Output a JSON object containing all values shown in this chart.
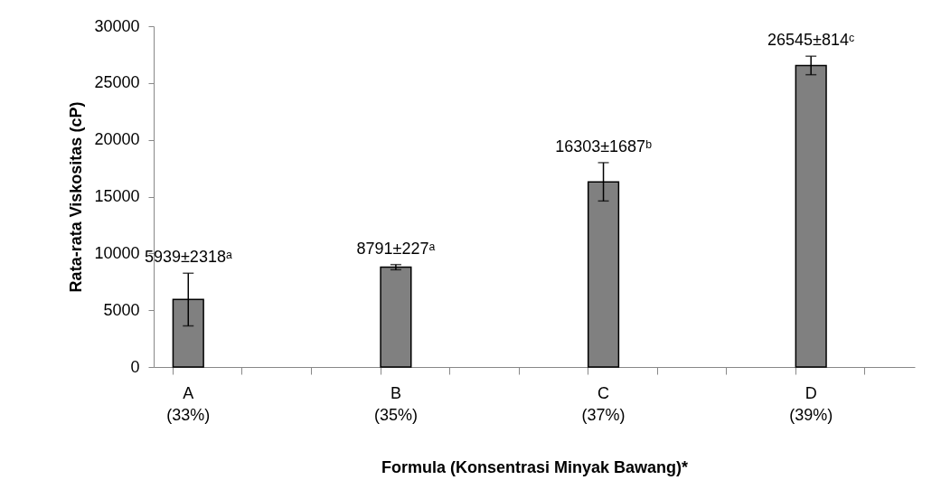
{
  "chart_data": {
    "type": "bar",
    "xlabel": "Formula (Konsentrasi Minyak Bawang)*",
    "ylabel": "Rata-rata Viskositas (cP)",
    "categories": [
      "A\n(33%)",
      null,
      null,
      "B\n(35%)",
      null,
      null,
      "C\n(37%)",
      null,
      null,
      "D\n(39%)",
      null
    ],
    "values": [
      5939,
      null,
      null,
      8791,
      null,
      null,
      16303,
      null,
      null,
      26545,
      null
    ],
    "errors": [
      2318,
      null,
      null,
      227,
      null,
      null,
      1687,
      null,
      null,
      814,
      null
    ],
    "value_labels": [
      "5939±2318ᵃ",
      null,
      null,
      "8791±227ᵃ",
      null,
      null,
      "16303±1687ᵇ",
      null,
      null,
      "26545±814ᶜ",
      null
    ],
    "color": "#808080",
    "ylim": [
      0,
      30000
    ],
    "yticks": [
      0,
      5000,
      10000,
      15000,
      20000,
      25000,
      30000
    ]
  }
}
